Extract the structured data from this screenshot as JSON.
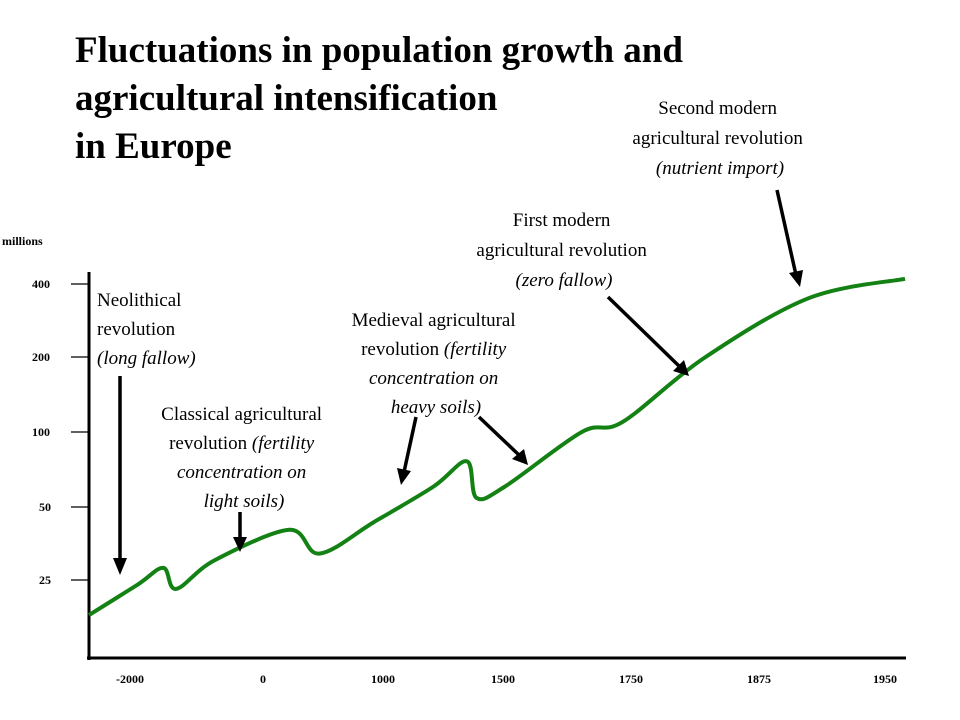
{
  "chart_data": {
    "type": "line",
    "title": [
      "Fluctuations in population growth and",
      "agricultural intensification",
      "in Europe"
    ],
    "ylabel": "millions",
    "x_ticks": [
      "-2000",
      "0",
      "1000",
      "1500",
      "1750",
      "1875",
      "1950"
    ],
    "y_ticks": [
      "400",
      "200",
      "100",
      "50",
      "25"
    ],
    "y_scale": "log",
    "series_color": "#138113",
    "series": [
      {
        "values": [
          {
            "x": -2500,
            "y": 18
          },
          {
            "x": -2000,
            "y": 24
          },
          {
            "x": -1600,
            "y": 28
          },
          {
            "x": -1400,
            "y": 23
          },
          {
            "x": -800,
            "y": 30
          },
          {
            "x": 200,
            "y": 40
          },
          {
            "x": 450,
            "y": 32
          },
          {
            "x": 900,
            "y": 43
          },
          {
            "x": 1200,
            "y": 60
          },
          {
            "x": 1340,
            "y": 76
          },
          {
            "x": 1380,
            "y": 54
          },
          {
            "x": 1500,
            "y": 60
          },
          {
            "x": 1650,
            "y": 100
          },
          {
            "x": 1730,
            "y": 110
          },
          {
            "x": 1820,
            "y": 200
          },
          {
            "x": 1900,
            "y": 350
          },
          {
            "x": 1950,
            "y": 420
          }
        ]
      }
    ],
    "annotations": [
      {
        "lines": [
          [
            "Neolithical",
            ""
          ],
          [
            "revolution",
            ""
          ],
          [
            "",
            "(long fallow)"
          ]
        ]
      },
      {
        "lines": [
          [
            "Classical agricultural",
            ""
          ],
          [
            "revolution ",
            "(fertility"
          ],
          [
            "",
            "concentration on"
          ],
          [
            "",
            "light soils)"
          ]
        ]
      },
      {
        "lines": [
          [
            "Medieval agricultural",
            ""
          ],
          [
            "revolution ",
            "(fertility"
          ],
          [
            "",
            "concentration on"
          ],
          [
            "",
            "heavy soils)"
          ]
        ]
      },
      {
        "lines": [
          [
            "First modern",
            ""
          ],
          [
            "agricultural revolution",
            ""
          ],
          [
            "",
            "(zero fallow)"
          ]
        ]
      },
      {
        "lines": [
          [
            "Second modern",
            ""
          ],
          [
            "agricultural revolution",
            ""
          ],
          [
            "",
            "(nutrient import)"
          ]
        ]
      }
    ]
  }
}
